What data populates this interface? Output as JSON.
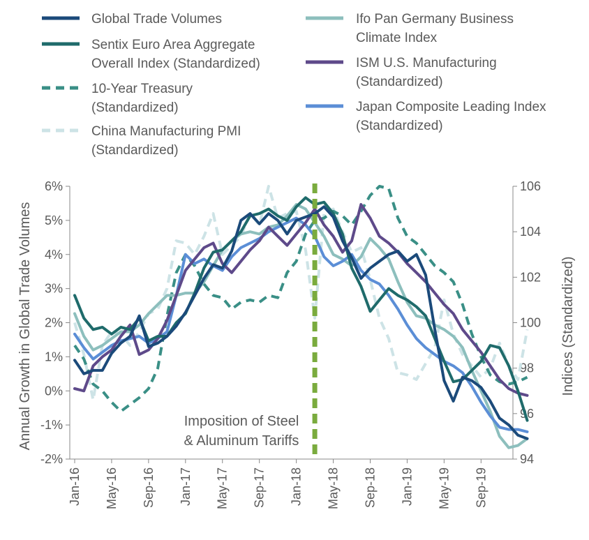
{
  "chart_data": {
    "type": "line",
    "x_tick_labels": [
      "Jan-16",
      "May-16",
      "Sep-16",
      "Jan-17",
      "May-17",
      "Sep-17",
      "Jan-18",
      "May-18",
      "Sep-18",
      "Jan-19",
      "May-19",
      "Sep-19"
    ],
    "x_range": [
      "Jan-16",
      "Dec-19"
    ],
    "y_left": {
      "label": "Annual Growth in Global Trade Volumes",
      "range": [
        -2,
        6
      ],
      "tick_labels": [
        "-2%",
        "-1%",
        "0%",
        "1%",
        "2%",
        "3%",
        "4%",
        "5%",
        "6%"
      ],
      "tick_values": [
        -2,
        -1,
        0,
        1,
        2,
        3,
        4,
        5,
        6
      ]
    },
    "y_right": {
      "label": "Indices (Standardized)",
      "range": [
        94,
        106
      ],
      "tick_labels": [
        "94",
        "96",
        "98",
        "100",
        "102",
        "104",
        "106"
      ],
      "tick_values": [
        94,
        96,
        98,
        100,
        102,
        104,
        106
      ]
    },
    "annotation": {
      "line1": "Imposition of Steel",
      "line2": "& Aluminum Tariffs",
      "x": "Mar-18",
      "color": "#7aab3e"
    },
    "series": [
      {
        "name": "Global Trade Volumes",
        "axis": "left",
        "color": "#1b4a7a",
        "dash": "solid",
        "values": [
          0.9,
          0.5,
          0.6,
          0.6,
          1.1,
          1.4,
          1.6,
          2.2,
          1.3,
          1.4,
          1.6,
          1.9,
          2.3,
          2.8,
          3.3,
          3.7,
          3.6,
          4.1,
          5.0,
          5.2,
          4.9,
          5.2,
          5.0,
          4.6,
          5.0,
          5.1,
          5.2,
          5.4,
          5.1,
          4.4,
          3.9,
          3.3,
          3.6,
          3.8,
          4.0,
          4.1,
          3.8,
          4.0,
          3.4,
          1.8,
          0.3,
          -0.3,
          0.4,
          0.3,
          0.1,
          -0.3,
          -0.8,
          -1.0,
          -1.3,
          -1.4
        ]
      },
      {
        "name": "Sentix Euro Area Aggregate Overall Index (Standardized)",
        "axis": "right",
        "color": "#1f6b6b",
        "dash": "solid",
        "values": [
          101.2,
          100.2,
          99.7,
          99.8,
          99.5,
          99.8,
          99.7,
          100.2,
          99.2,
          99.4,
          99.4,
          100.0,
          100.4,
          101.3,
          102.4,
          103.1,
          103.2,
          103.6,
          104.0,
          104.7,
          104.8,
          105.0,
          104.7,
          104.5,
          105.1,
          105.5,
          105.2,
          105.3,
          104.8,
          103.9,
          102.4,
          101.6,
          100.5,
          101.0,
          101.5,
          101.2,
          101.0,
          100.7,
          100.3,
          99.3,
          98.3,
          97.4,
          97.5,
          97.9,
          98.3,
          99.0,
          98.9,
          98.1,
          97.0,
          95.7
        ]
      },
      {
        "name": "10-Year Treasury (Standardized)",
        "axis": "right",
        "color": "#3a8f86",
        "dash": "dashed",
        "values": [
          99.0,
          98.4,
          97.3,
          97.0,
          96.5,
          96.1,
          96.4,
          96.7,
          97.1,
          98.0,
          100.3,
          102.2,
          103.0,
          102.5,
          101.7,
          101.2,
          101.1,
          100.6,
          100.9,
          101.0,
          100.9,
          101.2,
          101.1,
          102.2,
          102.7,
          103.9,
          104.5,
          104.6,
          104.9,
          104.7,
          104.3,
          104.9,
          105.6,
          106.0,
          105.9,
          104.6,
          103.8,
          103.5,
          103.0,
          102.5,
          102.2,
          101.8,
          100.8,
          99.5,
          98.5,
          97.7,
          97.4,
          97.3,
          97.4,
          97.6
        ]
      },
      {
        "name": "China Manufacturing PMI (Standardized)",
        "axis": "right",
        "color": "#cde3e6",
        "dash": "dashed",
        "values": [
          100.0,
          98.6,
          96.6,
          99.0,
          99.6,
          99.5,
          99.0,
          99.6,
          100.4,
          100.6,
          101.5,
          103.6,
          103.5,
          103.0,
          103.8,
          104.8,
          103.0,
          103.4,
          103.8,
          104.8,
          104.3,
          106.0,
          104.6,
          104.8,
          104.9,
          103.2,
          100.2,
          104.8,
          105.0,
          104.0,
          103.1,
          103.3,
          101.9,
          100.2,
          99.3,
          97.8,
          97.7,
          97.5,
          98.2,
          98.9,
          101.0,
          99.5,
          98.6,
          98.1,
          97.6,
          98.0,
          99.1,
          98.1,
          97.5,
          99.7
        ]
      },
      {
        "name": "Ifo Pan Germany Business Climate Index",
        "axis": "right",
        "color": "#8dbfbd",
        "dash": "solid",
        "values": [
          100.4,
          99.4,
          98.8,
          99.0,
          99.3,
          99.6,
          99.6,
          99.9,
          100.4,
          100.8,
          101.2,
          101.2,
          101.3,
          101.3,
          101.8,
          102.5,
          103.2,
          103.6,
          103.9,
          104.0,
          103.9,
          104.2,
          104.3,
          104.7,
          105.2,
          105.0,
          104.4,
          103.8,
          103.0,
          102.8,
          102.5,
          102.9,
          103.7,
          103.3,
          102.8,
          101.8,
          100.9,
          100.3,
          100.2,
          99.9,
          99.7,
          99.4,
          98.9,
          97.9,
          97.0,
          96.1,
          95.0,
          94.5,
          94.6,
          94.9
        ]
      },
      {
        "name": "ISM U.S. Manufacturing (Standardized)",
        "axis": "right",
        "color": "#5e4a8a",
        "dash": "solid",
        "values": [
          97.1,
          97.0,
          98.1,
          98.5,
          98.8,
          99.4,
          99.9,
          98.6,
          98.8,
          99.3,
          100.1,
          101.2,
          102.3,
          102.8,
          103.3,
          103.5,
          102.6,
          102.2,
          102.7,
          103.2,
          103.6,
          104.2,
          103.8,
          103.4,
          103.9,
          104.4,
          105.0,
          104.3,
          103.8,
          103.1,
          103.6,
          105.2,
          104.6,
          103.8,
          103.5,
          103.1,
          102.6,
          102.2,
          101.8,
          101.3,
          100.8,
          100.4,
          99.7,
          99.2,
          98.7,
          98.1,
          97.5,
          97.1,
          96.9,
          96.8
        ]
      },
      {
        "name": "Japan Composite Leading Index (Standardized)",
        "axis": "right",
        "color": "#5b8ed6",
        "dash": "solid",
        "values": [
          99.5,
          98.9,
          98.4,
          98.7,
          99.0,
          99.2,
          99.3,
          99.4,
          99.1,
          99.3,
          99.6,
          101.2,
          103.0,
          102.6,
          102.8,
          102.5,
          102.3,
          102.9,
          103.3,
          103.5,
          103.7,
          104.0,
          104.2,
          104.4,
          104.6,
          104.3,
          103.8,
          102.9,
          102.5,
          102.7,
          103.0,
          102.3,
          101.9,
          101.7,
          101.2,
          100.6,
          99.9,
          99.3,
          98.9,
          98.6,
          98.3,
          98.1,
          97.8,
          97.2,
          96.5,
          95.9,
          95.4,
          95.3,
          95.3,
          95.2
        ]
      }
    ]
  }
}
